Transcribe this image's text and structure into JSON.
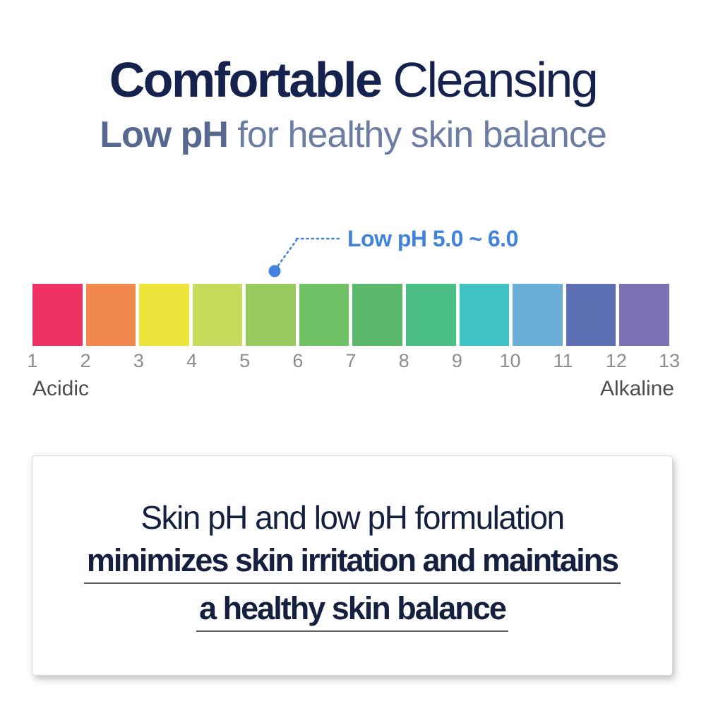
{
  "header": {
    "title": {
      "bold": "Comfortable",
      "regular": "Cleansing"
    },
    "subtitle": {
      "bold": "Low pH",
      "regular": "for healthy skin balance"
    },
    "title_color": "#16224e",
    "subtitle_color": "#56688f"
  },
  "callout": {
    "label": "Low pH 5.0 ~ 6.0",
    "accent_color": "#4183dc"
  },
  "ph_scale": {
    "block_colors": [
      "#ee3263",
      "#f0884e",
      "#ece33b",
      "#c6da5b",
      "#97c95f",
      "#70c065",
      "#5bb96b",
      "#4cbf87",
      "#3fc2c3",
      "#68aed6",
      "#5b6fb2",
      "#7b72b5"
    ],
    "tick_labels": [
      "1",
      "2",
      "3",
      "4",
      "5",
      "6",
      "7",
      "8",
      "9",
      "10",
      "11",
      "12",
      "13"
    ],
    "left_label": "Acidic",
    "right_label": "Alkaline",
    "tick_color": "#8c8c8c",
    "end_label_color": "#4d4d4d"
  },
  "info_box": {
    "line1": "Skin pH and low pH formulation",
    "line2_underlined": "minimizes skin irritation and maintains",
    "line3_underlined": "a healthy skin balance",
    "text_color": "#15203f"
  }
}
